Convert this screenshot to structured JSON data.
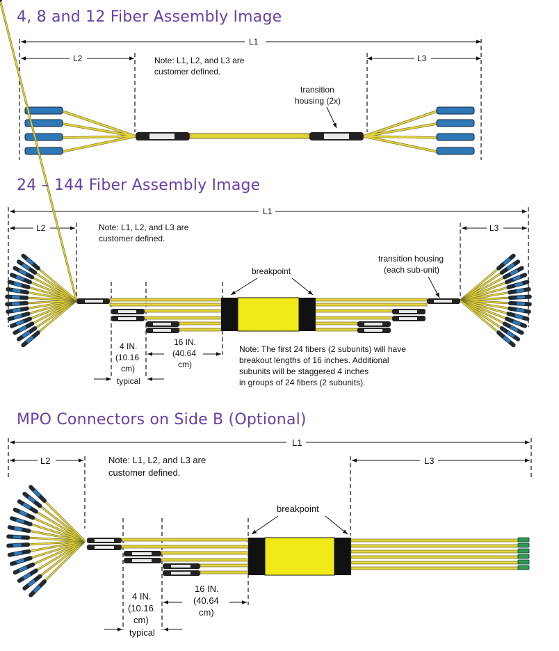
{
  "section1": {
    "title": "4, 8 and 12 Fiber Assembly Image",
    "l1": "L1",
    "l2": "L2",
    "l3": "L3",
    "note_line1": "Note: L1, L2, and L3 are",
    "note_line2": "customer defined.",
    "transition_line1": "transition",
    "transition_line2": "housing (2x)"
  },
  "section2": {
    "title": "24 – 144 Fiber Assembly Image",
    "l1": "L1",
    "l2": "L2",
    "l3": "L3",
    "note_line1": "Note:  L1, L2, and L3 are",
    "note_line2": "customer defined.",
    "breakpoint": "breakpoint",
    "transition_line1": "transition housing",
    "transition_line2": "(each sub-unit)",
    "four_in_line1": "4 IN.",
    "four_in_line2": "(10.16",
    "four_in_line3": "cm)",
    "four_in_line4": "typical",
    "sixteen_in_line1": "16 IN.",
    "sixteen_in_line2": "(40.64",
    "sixteen_in_line3": "cm)",
    "stagger_note_line1": "Note: The first 24 fibers (2 subunits) will have",
    "stagger_note_line2": "breakout lengths of 16 inches.  Additional",
    "stagger_note_line3": "subunits will be staggered 4 inches",
    "stagger_note_line4": "in groups of 24 fibers (2 subunits)."
  },
  "section3": {
    "title": "MPO Connectors on Side B (Optional)",
    "l1": "L1",
    "l2": "L2",
    "l3": "L3",
    "note_line1": "Note:  L1, L2, and L3 are",
    "note_line2": "customer defined.",
    "breakpoint": "breakpoint",
    "four_in_line1": "4 IN.",
    "four_in_line2": "(10.16",
    "four_in_line3": "cm)",
    "four_in_line4": "typical",
    "sixteen_in_line1": "16 IN.",
    "sixteen_in_line2": "(40.64",
    "sixteen_in_line3": "cm)"
  },
  "colors": {
    "title": "#6b3fa0",
    "fiber": "#e3d33a",
    "furcation": "#f2ea18",
    "connector_blue": "#2f78b8",
    "mpo_green": "#2e9a57"
  }
}
